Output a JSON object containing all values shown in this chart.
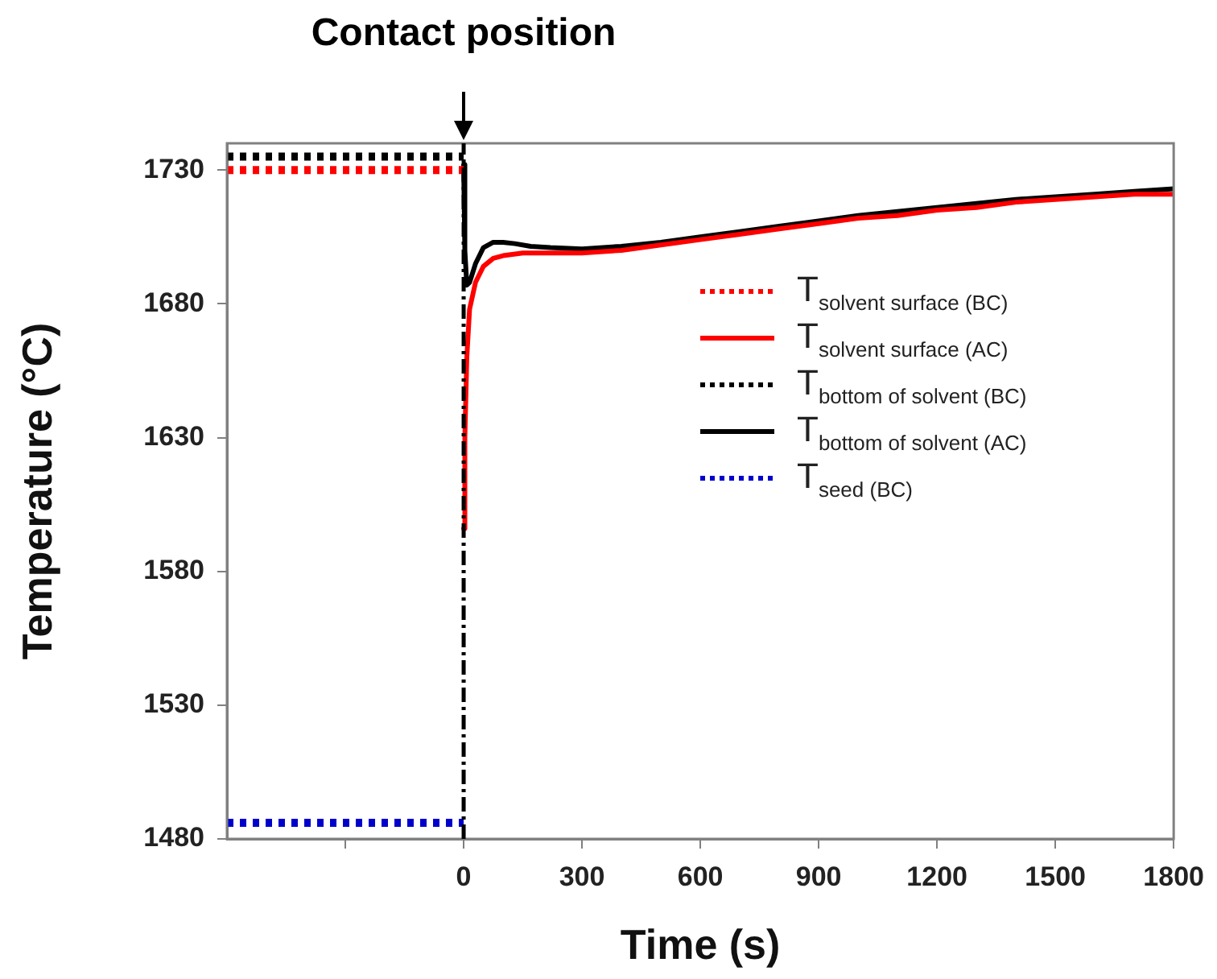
{
  "chart_data": {
    "type": "line",
    "xlabel": "Time (s)",
    "ylabel": "Temperature (°C)",
    "xlim": [
      -600,
      1800
    ],
    "xticks": [
      {
        "value": -300,
        "label": null
      },
      0,
      300,
      600,
      900,
      1200,
      1500,
      1800
    ],
    "ylim": [
      1480,
      1740
    ],
    "yticks": [
      1480,
      1530,
      1580,
      1630,
      1680,
      1730
    ],
    "grid": false,
    "legend": "right",
    "marker": "none",
    "ref_lines": [
      {
        "axis": "x",
        "value": 0,
        "label": "Contact position",
        "color": "#000000",
        "line_style": "dashed"
      }
    ],
    "series": [
      {
        "name": "T$_{solvent surface (BC)}$",
        "color": "#ff0000",
        "line_style": "dotted",
        "x": [
          -600,
          0
        ],
        "values": [
          1730,
          1730
        ]
      },
      {
        "name": "T$_{solvent surface (AC)}$",
        "color": "#ff0000",
        "line_style": "solid",
        "x": [
          0,
          3,
          8,
          15,
          30,
          50,
          75,
          100,
          150,
          200,
          300,
          400,
          500,
          600,
          700,
          800,
          900,
          1000,
          1100,
          1200,
          1300,
          1400,
          1500,
          1600,
          1700,
          1800
        ],
        "values": [
          1596,
          1630,
          1660,
          1678,
          1688,
          1694,
          1697,
          1698,
          1699,
          1699,
          1699,
          1700,
          1702,
          1704,
          1706,
          1708,
          1710,
          1712,
          1713,
          1715,
          1716,
          1718,
          1719,
          1720,
          1721,
          1721
        ]
      },
      {
        "name": "T$_{bottom of solvent (BC)}$",
        "color": "#000000",
        "line_style": "dotted",
        "x": [
          -600,
          0
        ],
        "values": [
          1735,
          1735
        ]
      },
      {
        "name": "T$_{bottom of solvent (AC)}$",
        "color": "#000000",
        "line_style": "solid",
        "x": [
          0,
          3,
          8,
          15,
          30,
          50,
          75,
          100,
          130,
          170,
          220,
          300,
          400,
          500,
          600,
          700,
          800,
          900,
          1000,
          1100,
          1200,
          1300,
          1400,
          1500,
          1600,
          1700,
          1800
        ],
        "values": [
          1732,
          1700,
          1687,
          1688,
          1695,
          1701,
          1703,
          1703,
          1702.5,
          1701.5,
          1701,
          1700.5,
          1701.5,
          1703,
          1705,
          1707,
          1709,
          1711,
          1713,
          1714.5,
          1716,
          1717.5,
          1719,
          1720,
          1721,
          1722,
          1723
        ]
      },
      {
        "name": "T$_{seed (BC)}$",
        "color": "#0000cc",
        "line_style": "dotted",
        "x": [
          -600,
          0
        ],
        "values": [
          1486,
          1486
        ]
      }
    ]
  }
}
